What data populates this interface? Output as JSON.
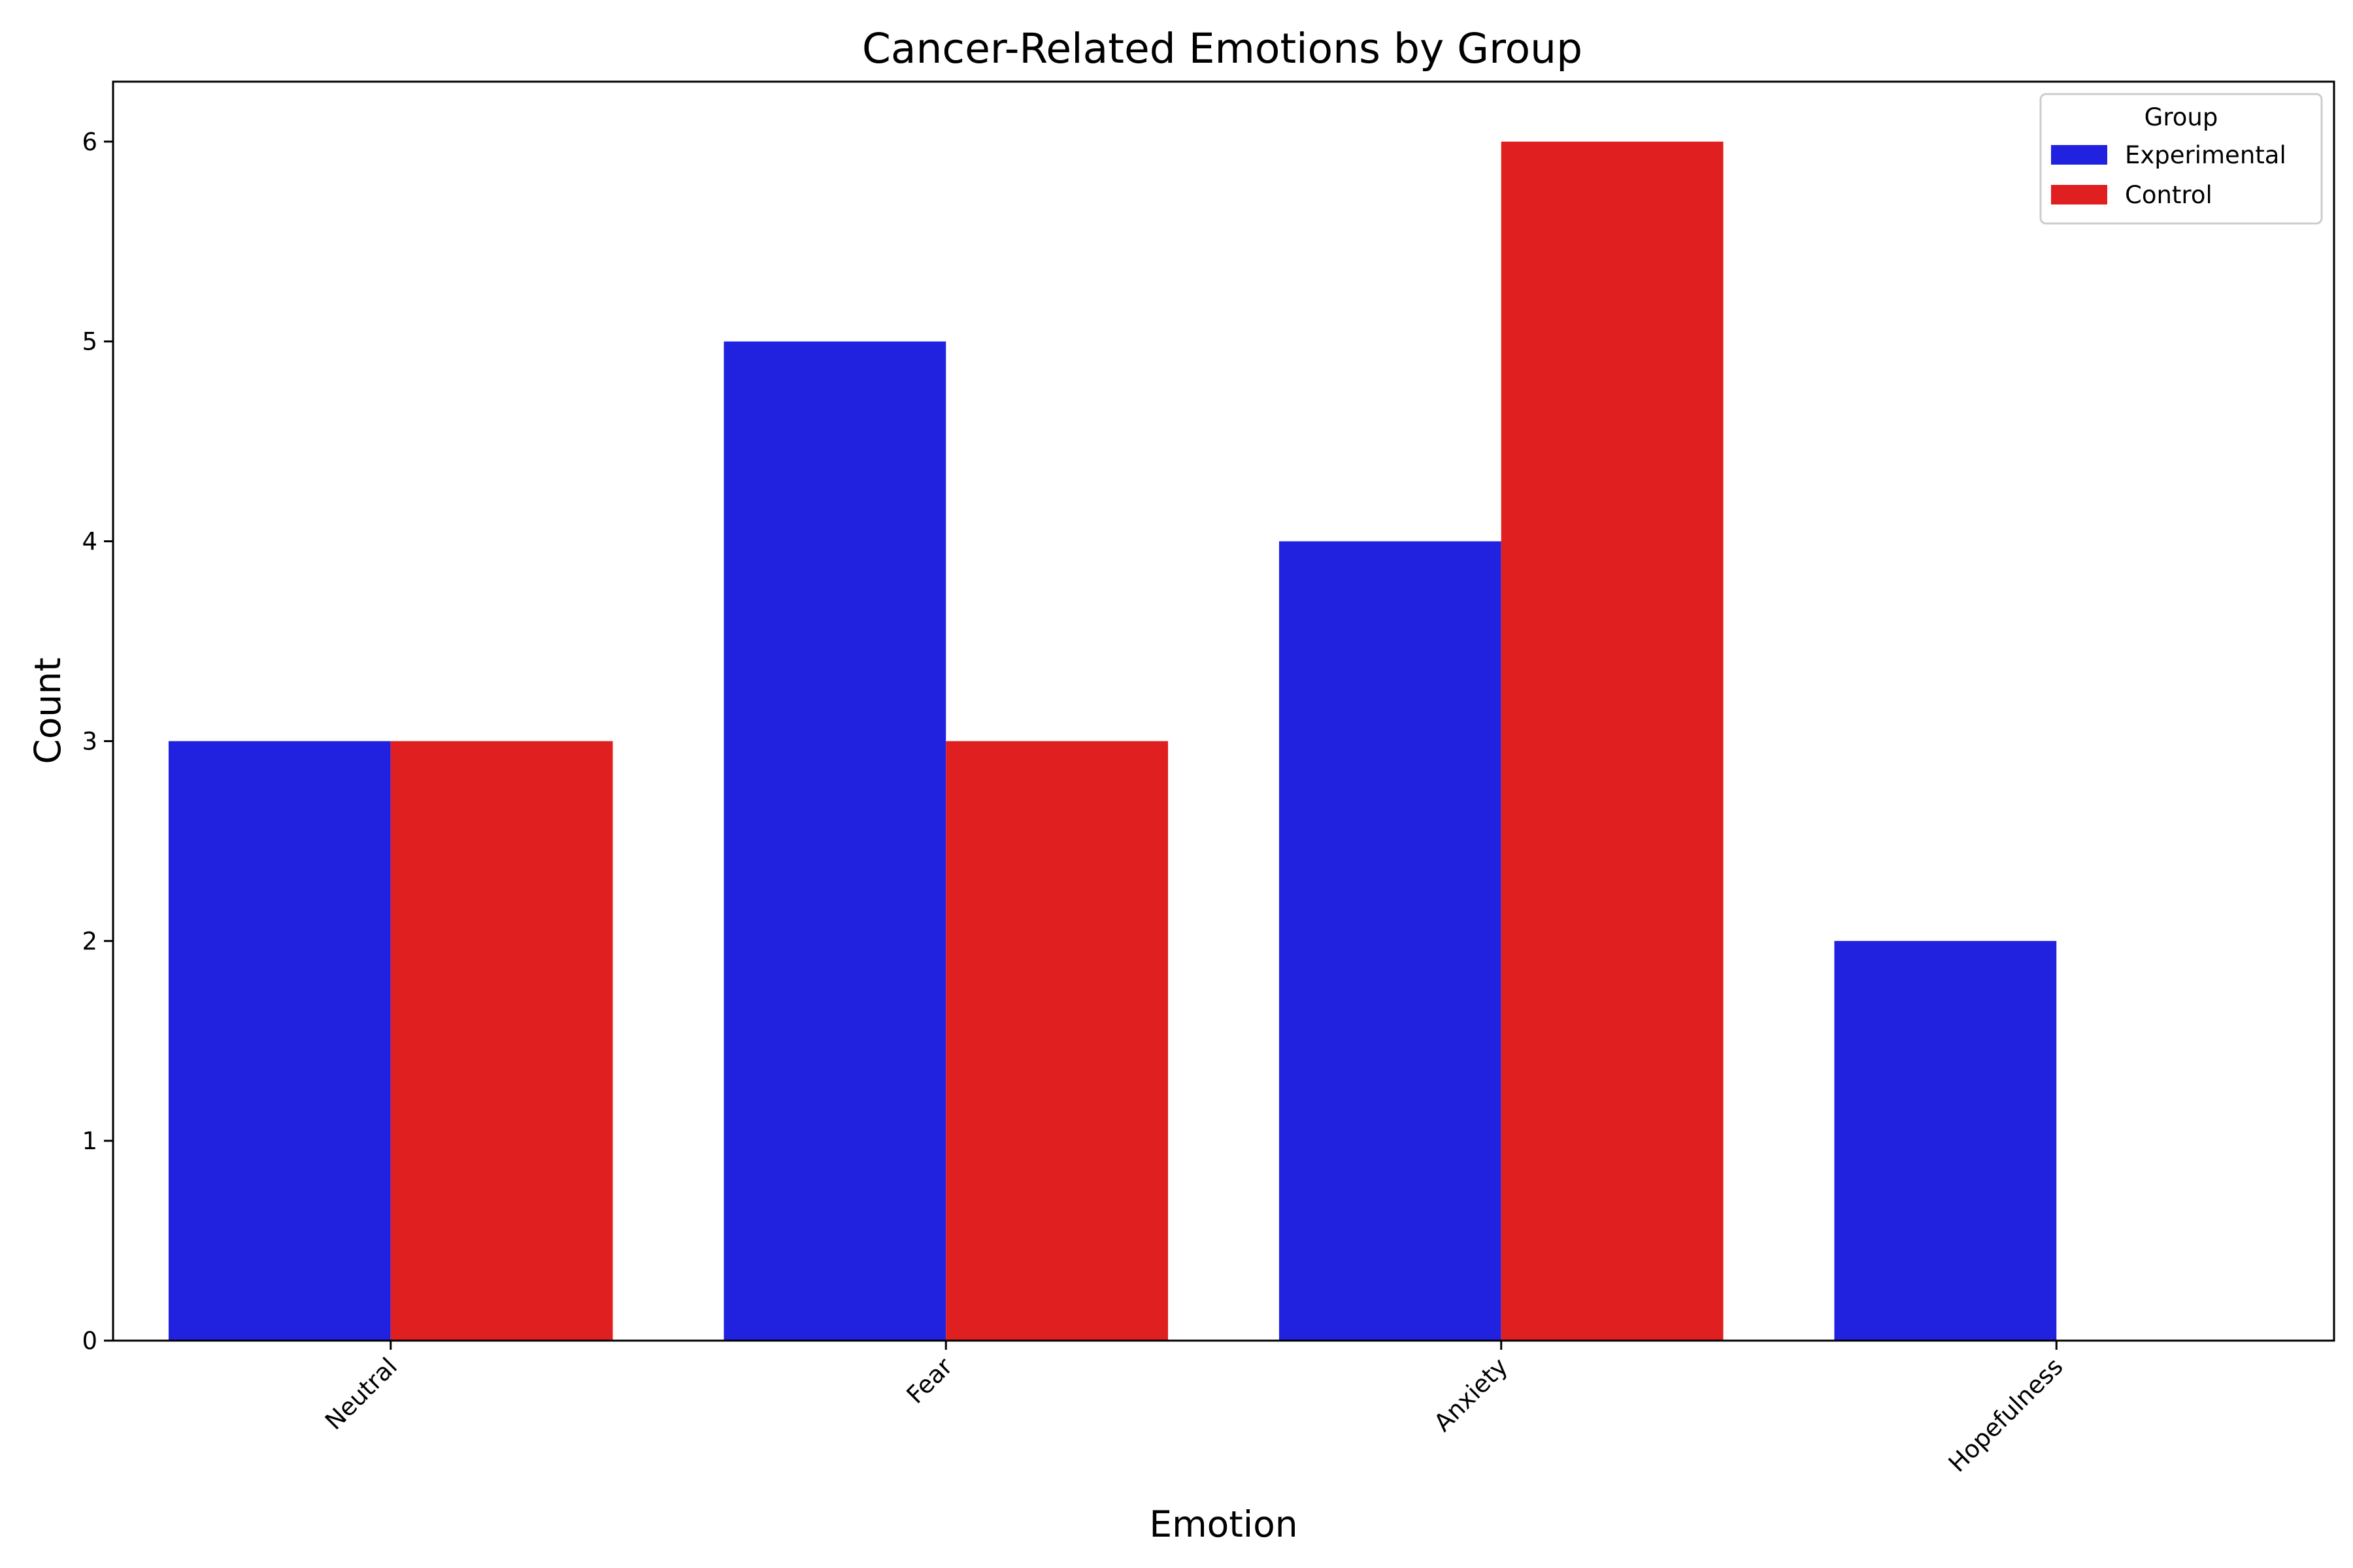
{
  "chart_data": {
    "type": "bar",
    "title": "Cancer-Related Emotions by Group",
    "xlabel": "Emotion",
    "ylabel": "Count",
    "categories": [
      "Neutral",
      "Fear",
      "Anxiety",
      "Hopefulness"
    ],
    "series": [
      {
        "name": "Experimental",
        "values": [
          3,
          5,
          4,
          2
        ],
        "color": "#2121e0"
      },
      {
        "name": "Control",
        "values": [
          3,
          3,
          6,
          0
        ],
        "color": "#e02020"
      }
    ],
    "ylim": [
      0,
      6.3
    ],
    "yticks": [
      0,
      1,
      2,
      3,
      4,
      5,
      6
    ],
    "grid": false,
    "legend": {
      "title": "Group",
      "placement": "top-right"
    }
  }
}
